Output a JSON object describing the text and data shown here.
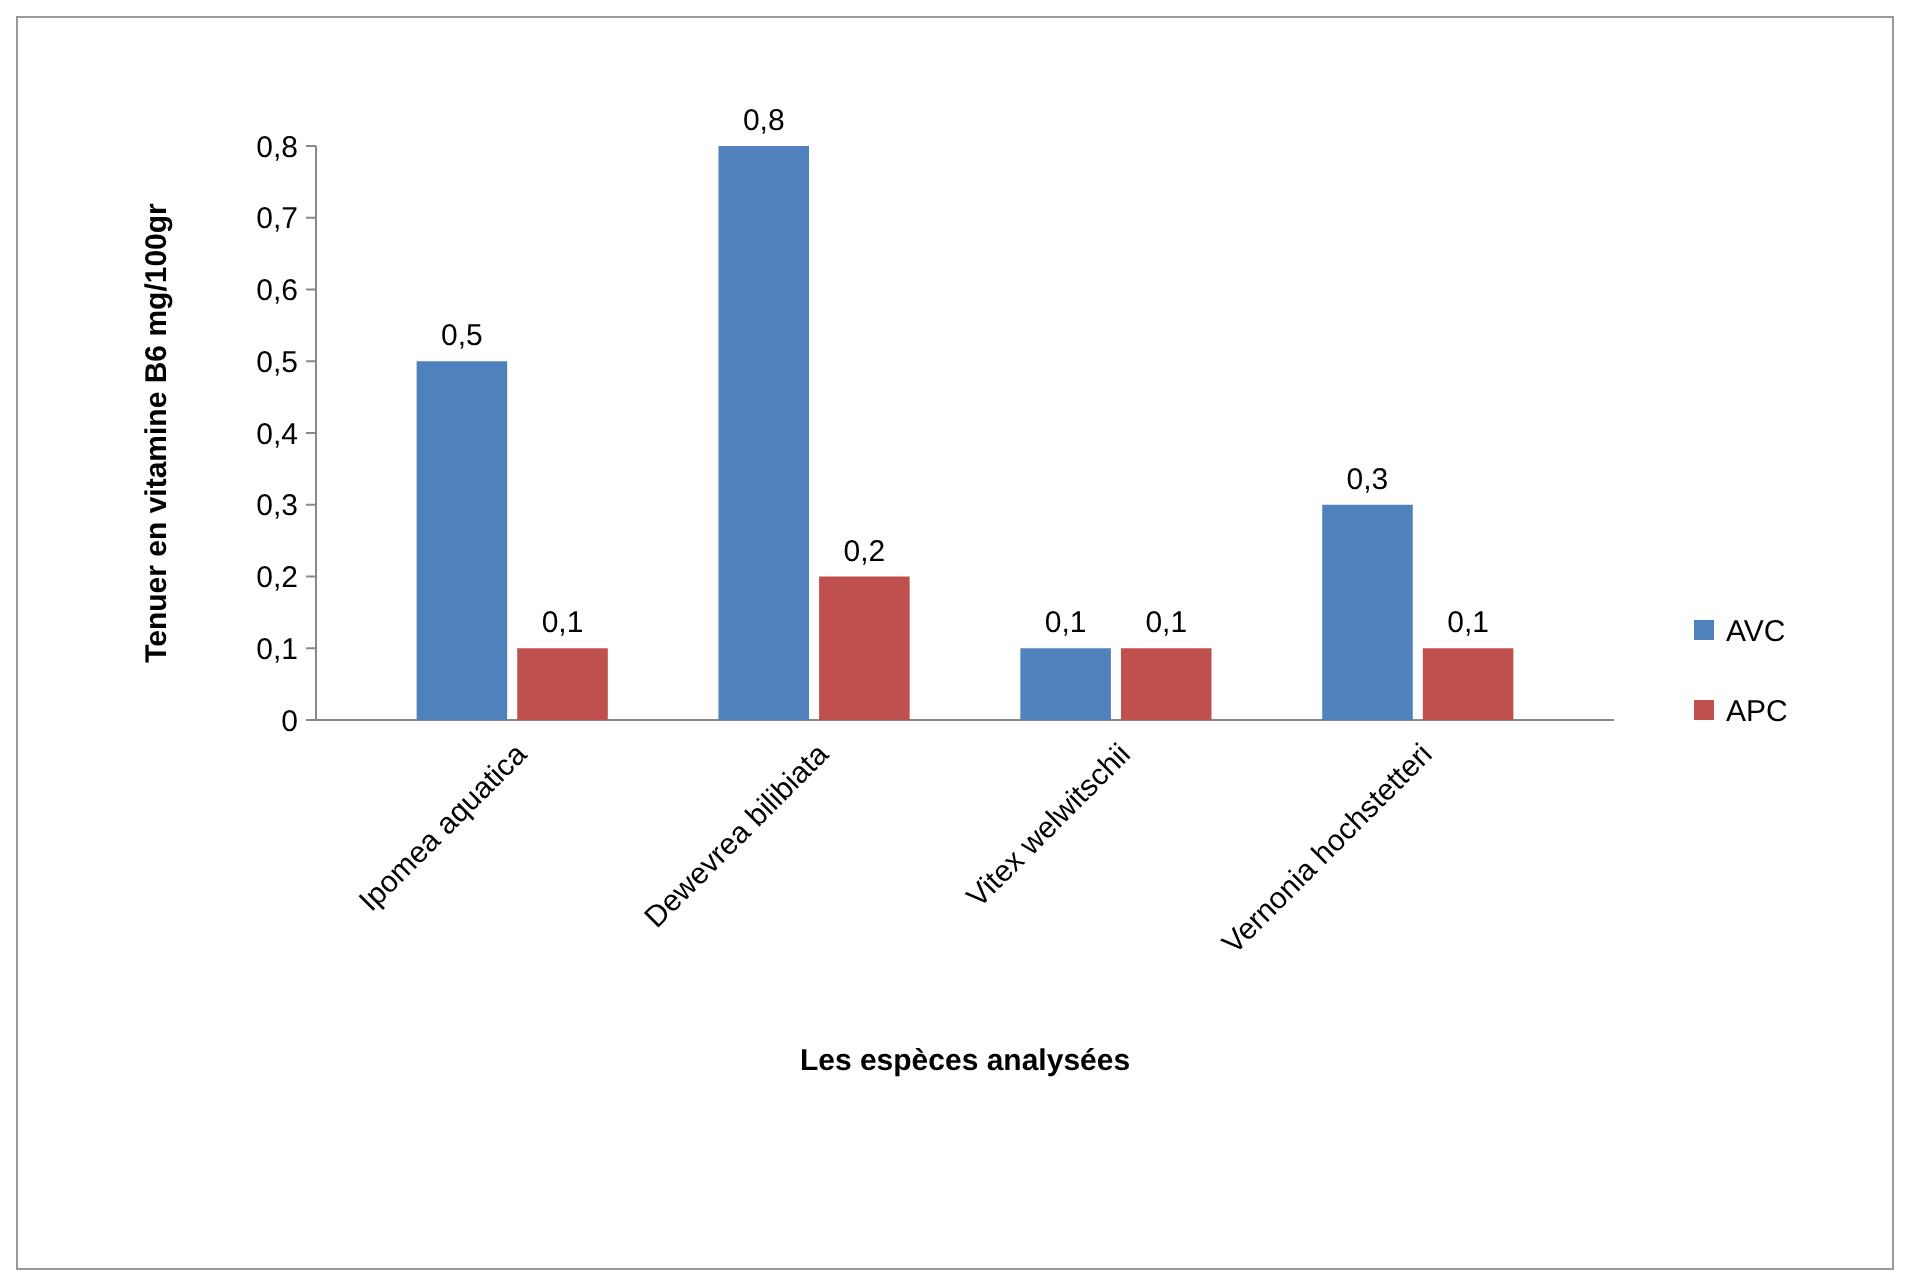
{
  "chart_data": {
    "type": "bar",
    "xlabel": "Les espèces analysées",
    "ylabel": "Tenuer en vitamine B6 mg/100gr",
    "categories": [
      "Ipomea aquatica",
      "Dewevrea bilibiata",
      "Vitex welwitschii",
      "Vernonia hochstetteri"
    ],
    "series": [
      {
        "name": "AVC",
        "color": "#4f81bd",
        "values": [
          0.5,
          0.8,
          0.1,
          0.3
        ],
        "value_labels": [
          "0,5",
          "0,8",
          "0,1",
          "0,3"
        ]
      },
      {
        "name": "APC",
        "color": "#c0504d",
        "values": [
          0.1,
          0.2,
          0.1,
          0.1
        ],
        "value_labels": [
          "0,1",
          "0,2",
          "0,1",
          "0,1"
        ]
      }
    ],
    "ylim": [
      0,
      0.8
    ],
    "yticks": [
      {
        "value": 0,
        "label": "0"
      },
      {
        "value": 0.1,
        "label": "0,1"
      },
      {
        "value": 0.2,
        "label": "0,2"
      },
      {
        "value": 0.3,
        "label": "0,3"
      },
      {
        "value": 0.4,
        "label": "0,4"
      },
      {
        "value": 0.5,
        "label": "0,5"
      },
      {
        "value": 0.6,
        "label": "0,6"
      },
      {
        "value": 0.7,
        "label": "0,7"
      },
      {
        "value": 0.8,
        "label": "0,8"
      }
    ],
    "grid": false,
    "legend": "right"
  }
}
